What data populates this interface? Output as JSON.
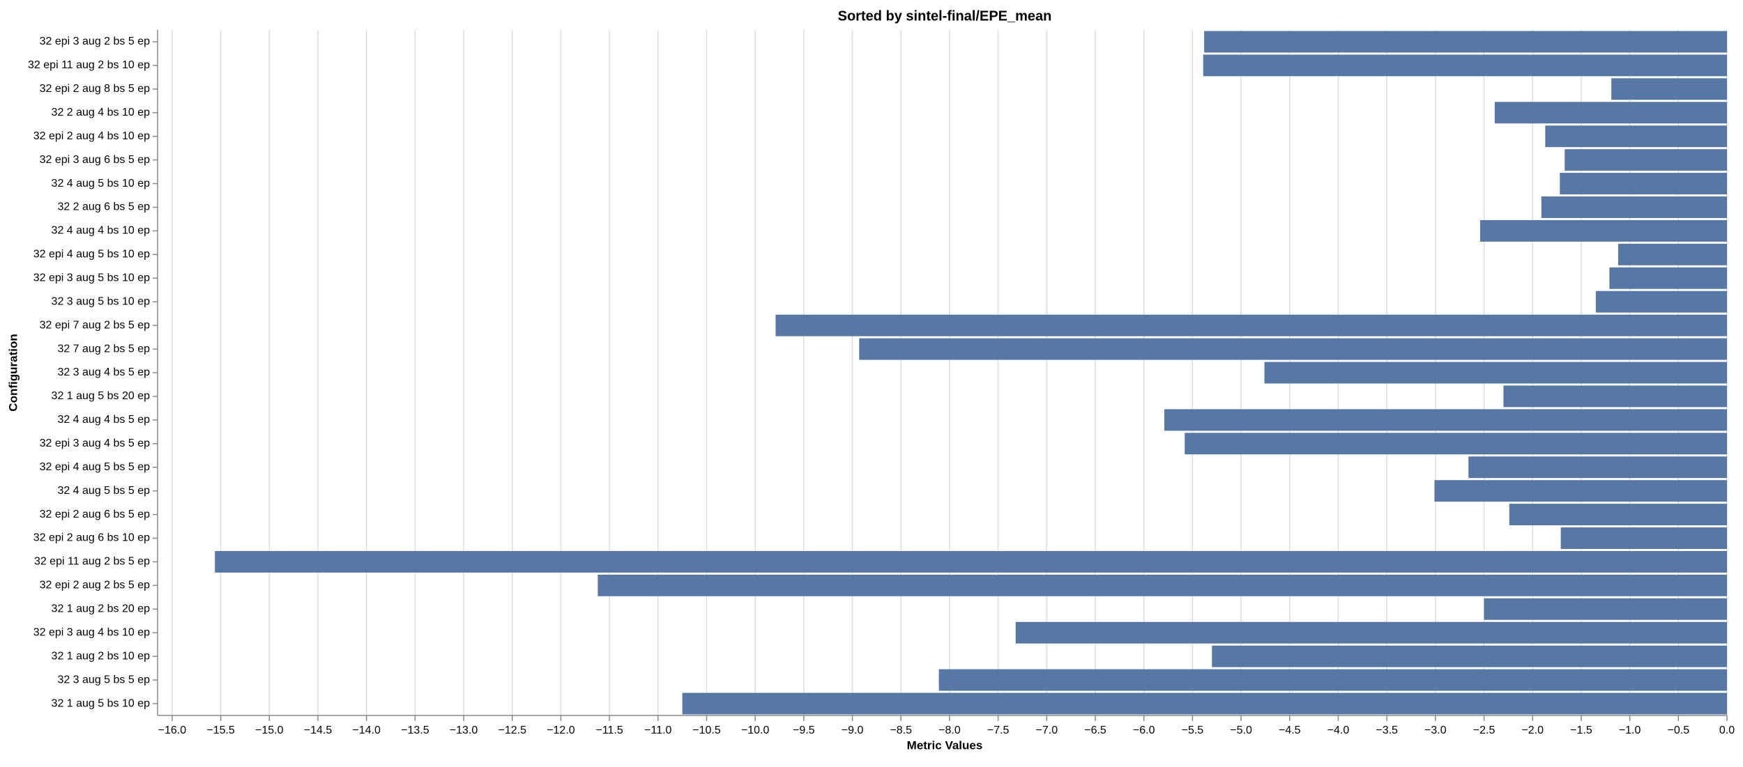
{
  "chart_data": {
    "type": "barh",
    "title": "Sorted by sintel-final/EPE_mean",
    "x_label": "Metric Values",
    "y_label": "Configuration",
    "color": "#5778a4",
    "grid": true,
    "categories": [
      "32 epi 3 aug 2 bs 5 ep",
      "32 epi 11 aug 2 bs 10 ep",
      "32 epi 2 aug 8 bs 5 ep",
      "32 2 aug 4 bs 10 ep",
      "32 epi 2 aug 4 bs 10 ep",
      "32 epi 3 aug 6 bs 5 ep",
      "32 4 aug 5 bs 10 ep",
      "32 2 aug 6 bs 5 ep",
      "32 4 aug 4 bs 10 ep",
      "32 epi 4 aug 5 bs 10 ep",
      "32 epi 3 aug 5 bs 10 ep",
      "32 3 aug 5 bs 10 ep",
      "32 epi 7 aug 2 bs 5 ep",
      "32 7 aug 2 bs 5 ep",
      "32 3 aug 4 bs 5 ep",
      "32 1 aug 5 bs 20 ep",
      "32 4 aug 4 bs 5 ep",
      "32 epi 3 aug 4 bs 5 ep",
      "32 epi 4 aug 5 bs 5 ep",
      "32 4 aug 5 bs 5 ep",
      "32 epi 2 aug 6 bs 5 ep",
      "32 epi 2 aug 6 bs 10 ep",
      "32 epi 11 aug 2 bs 5 ep",
      "32 epi 2 aug 2 bs 5 ep",
      "32 1 aug 2 bs 20 ep",
      "32 epi 3 aug 4 bs 10 ep",
      "32 1 aug 2 bs 10 ep",
      "32 3 aug 5 bs 5 ep",
      "32 1 aug 5 bs 10 ep"
    ],
    "values": [
      -5.38,
      -5.39,
      -1.19,
      -2.39,
      -1.87,
      -1.67,
      -1.72,
      -1.91,
      -2.54,
      -1.12,
      -1.21,
      -1.35,
      -9.79,
      -8.93,
      -4.76,
      -2.3,
      -5.79,
      -5.58,
      -2.66,
      -3.01,
      -2.24,
      -1.71,
      -15.56,
      -11.62,
      -2.5,
      -7.32,
      -5.3,
      -8.11,
      -10.75
    ],
    "xlim": [
      -16.15,
      0
    ],
    "xticks": [
      {
        "value": -16,
        "label": "−16.0"
      },
      {
        "value": -15.5,
        "label": "−15.5"
      },
      {
        "value": -15,
        "label": "−15.0"
      },
      {
        "value": -14.5,
        "label": "−14.5"
      },
      {
        "value": -14,
        "label": "−14.0"
      },
      {
        "value": -13.5,
        "label": "−13.5"
      },
      {
        "value": -13,
        "label": "−13.0"
      },
      {
        "value": -12.5,
        "label": "−12.5"
      },
      {
        "value": -12,
        "label": "−12.0"
      },
      {
        "value": -11.5,
        "label": "−11.5"
      },
      {
        "value": -11,
        "label": "−11.0"
      },
      {
        "value": -10.5,
        "label": "−10.5"
      },
      {
        "value": -10,
        "label": "−10.0"
      },
      {
        "value": -9.5,
        "label": "−9.5"
      },
      {
        "value": -9,
        "label": "−9.0"
      },
      {
        "value": -8.5,
        "label": "−8.5"
      },
      {
        "value": -8,
        "label": "−8.0"
      },
      {
        "value": -7.5,
        "label": "−7.5"
      },
      {
        "value": -7,
        "label": "−7.0"
      },
      {
        "value": -6.5,
        "label": "−6.5"
      },
      {
        "value": -6,
        "label": "−6.0"
      },
      {
        "value": -5.5,
        "label": "−5.5"
      },
      {
        "value": -5,
        "label": "−5.0"
      },
      {
        "value": -4.5,
        "label": "−4.5"
      },
      {
        "value": -4,
        "label": "−4.0"
      },
      {
        "value": -3.5,
        "label": "−3.5"
      },
      {
        "value": -3,
        "label": "−3.0"
      },
      {
        "value": -2.5,
        "label": "−2.5"
      },
      {
        "value": -2,
        "label": "−2.0"
      },
      {
        "value": -1.5,
        "label": "−1.5"
      },
      {
        "value": -1,
        "label": "−1.0"
      },
      {
        "value": -0.5,
        "label": "−0.5"
      },
      {
        "value": 0,
        "label": "0.0"
      }
    ]
  }
}
